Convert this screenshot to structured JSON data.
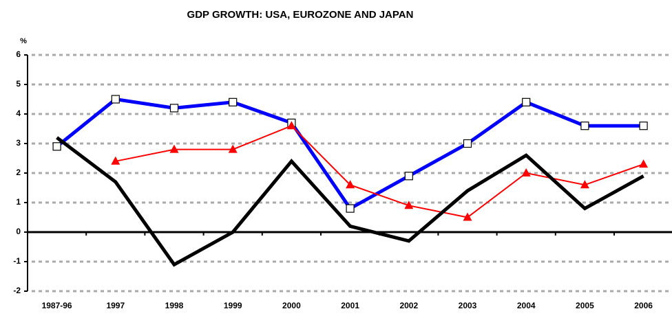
{
  "chart_data": {
    "type": "line",
    "title": "GDP GROWTH:  USA, EUROZONE AND JAPAN",
    "y_label": "%",
    "categories": [
      "1987-96",
      "1997",
      "1998",
      "1999",
      "2000",
      "2001",
      "2002",
      "2003",
      "2004",
      "2005",
      "2006"
    ],
    "series": [
      {
        "color": "#0000ff",
        "linewidth": 5,
        "marker": "square",
        "values": [
          2.9,
          4.5,
          4.2,
          4.4,
          3.7,
          0.8,
          1.9,
          3.0,
          4.4,
          3.6,
          3.6
        ]
      },
      {
        "color": "#ff0000",
        "linewidth": 2,
        "marker": "triangle",
        "values": [
          null,
          2.4,
          2.8,
          2.8,
          3.6,
          1.6,
          0.9,
          0.5,
          2.0,
          1.6,
          2.3
        ]
      },
      {
        "color": "#000000",
        "linewidth": 5,
        "marker": null,
        "values": [
          3.2,
          1.7,
          -1.1,
          0.0,
          2.4,
          0.2,
          -0.3,
          1.4,
          2.6,
          0.8,
          1.9
        ]
      }
    ],
    "ylim": [
      -2,
      6
    ],
    "yticks": [
      -2,
      -1,
      0,
      1,
      2,
      3,
      4,
      5,
      6
    ],
    "grid": true
  }
}
